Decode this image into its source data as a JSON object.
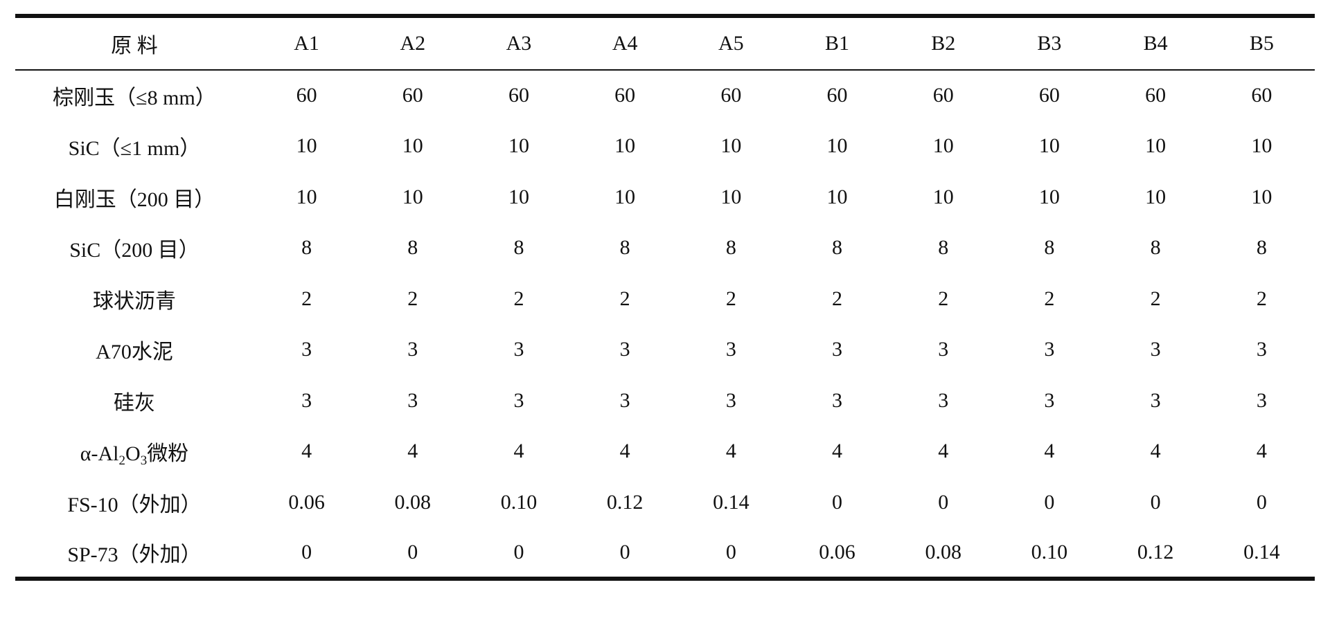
{
  "table": {
    "header": [
      "原  料",
      "A1",
      "A2",
      "A3",
      "A4",
      "A5",
      "B1",
      "B2",
      "B3",
      "B4",
      "B5"
    ],
    "rows": [
      {
        "label": "棕刚玉（≤8 mm）",
        "cells": [
          "60",
          "60",
          "60",
          "60",
          "60",
          "60",
          "60",
          "60",
          "60",
          "60"
        ]
      },
      {
        "label": "SiC（≤1 mm）",
        "cells": [
          "10",
          "10",
          "10",
          "10",
          "10",
          "10",
          "10",
          "10",
          "10",
          "10"
        ]
      },
      {
        "label": "白刚玉（200 目）",
        "cells": [
          "10",
          "10",
          "10",
          "10",
          "10",
          "10",
          "10",
          "10",
          "10",
          "10"
        ]
      },
      {
        "label": "SiC（200 目）",
        "cells": [
          "8",
          "8",
          "8",
          "8",
          "8",
          "8",
          "8",
          "8",
          "8",
          "8"
        ]
      },
      {
        "label": "球状沥青",
        "cells": [
          "2",
          "2",
          "2",
          "2",
          "2",
          "2",
          "2",
          "2",
          "2",
          "2"
        ]
      },
      {
        "label": "A70水泥",
        "cells": [
          "3",
          "3",
          "3",
          "3",
          "3",
          "3",
          "3",
          "3",
          "3",
          "3"
        ]
      },
      {
        "label": "硅灰",
        "cells": [
          "3",
          "3",
          "3",
          "3",
          "3",
          "3",
          "3",
          "3",
          "3",
          "3"
        ]
      },
      {
        "label": [
          "α-Al",
          "2",
          "O",
          "3",
          "微粉"
        ],
        "cells": [
          "4",
          "4",
          "4",
          "4",
          "4",
          "4",
          "4",
          "4",
          "4",
          "4"
        ]
      },
      {
        "label": "FS-10（外加）",
        "cells": [
          "0.06",
          "0.08",
          "0.10",
          "0.12",
          "0.14",
          "0",
          "0",
          "0",
          "0",
          "0"
        ]
      },
      {
        "label": "SP-73（外加）",
        "cells": [
          "0",
          "0",
          "0",
          "0",
          "0",
          "0.06",
          "0.08",
          "0.10",
          "0.12",
          "0.14"
        ]
      }
    ]
  }
}
